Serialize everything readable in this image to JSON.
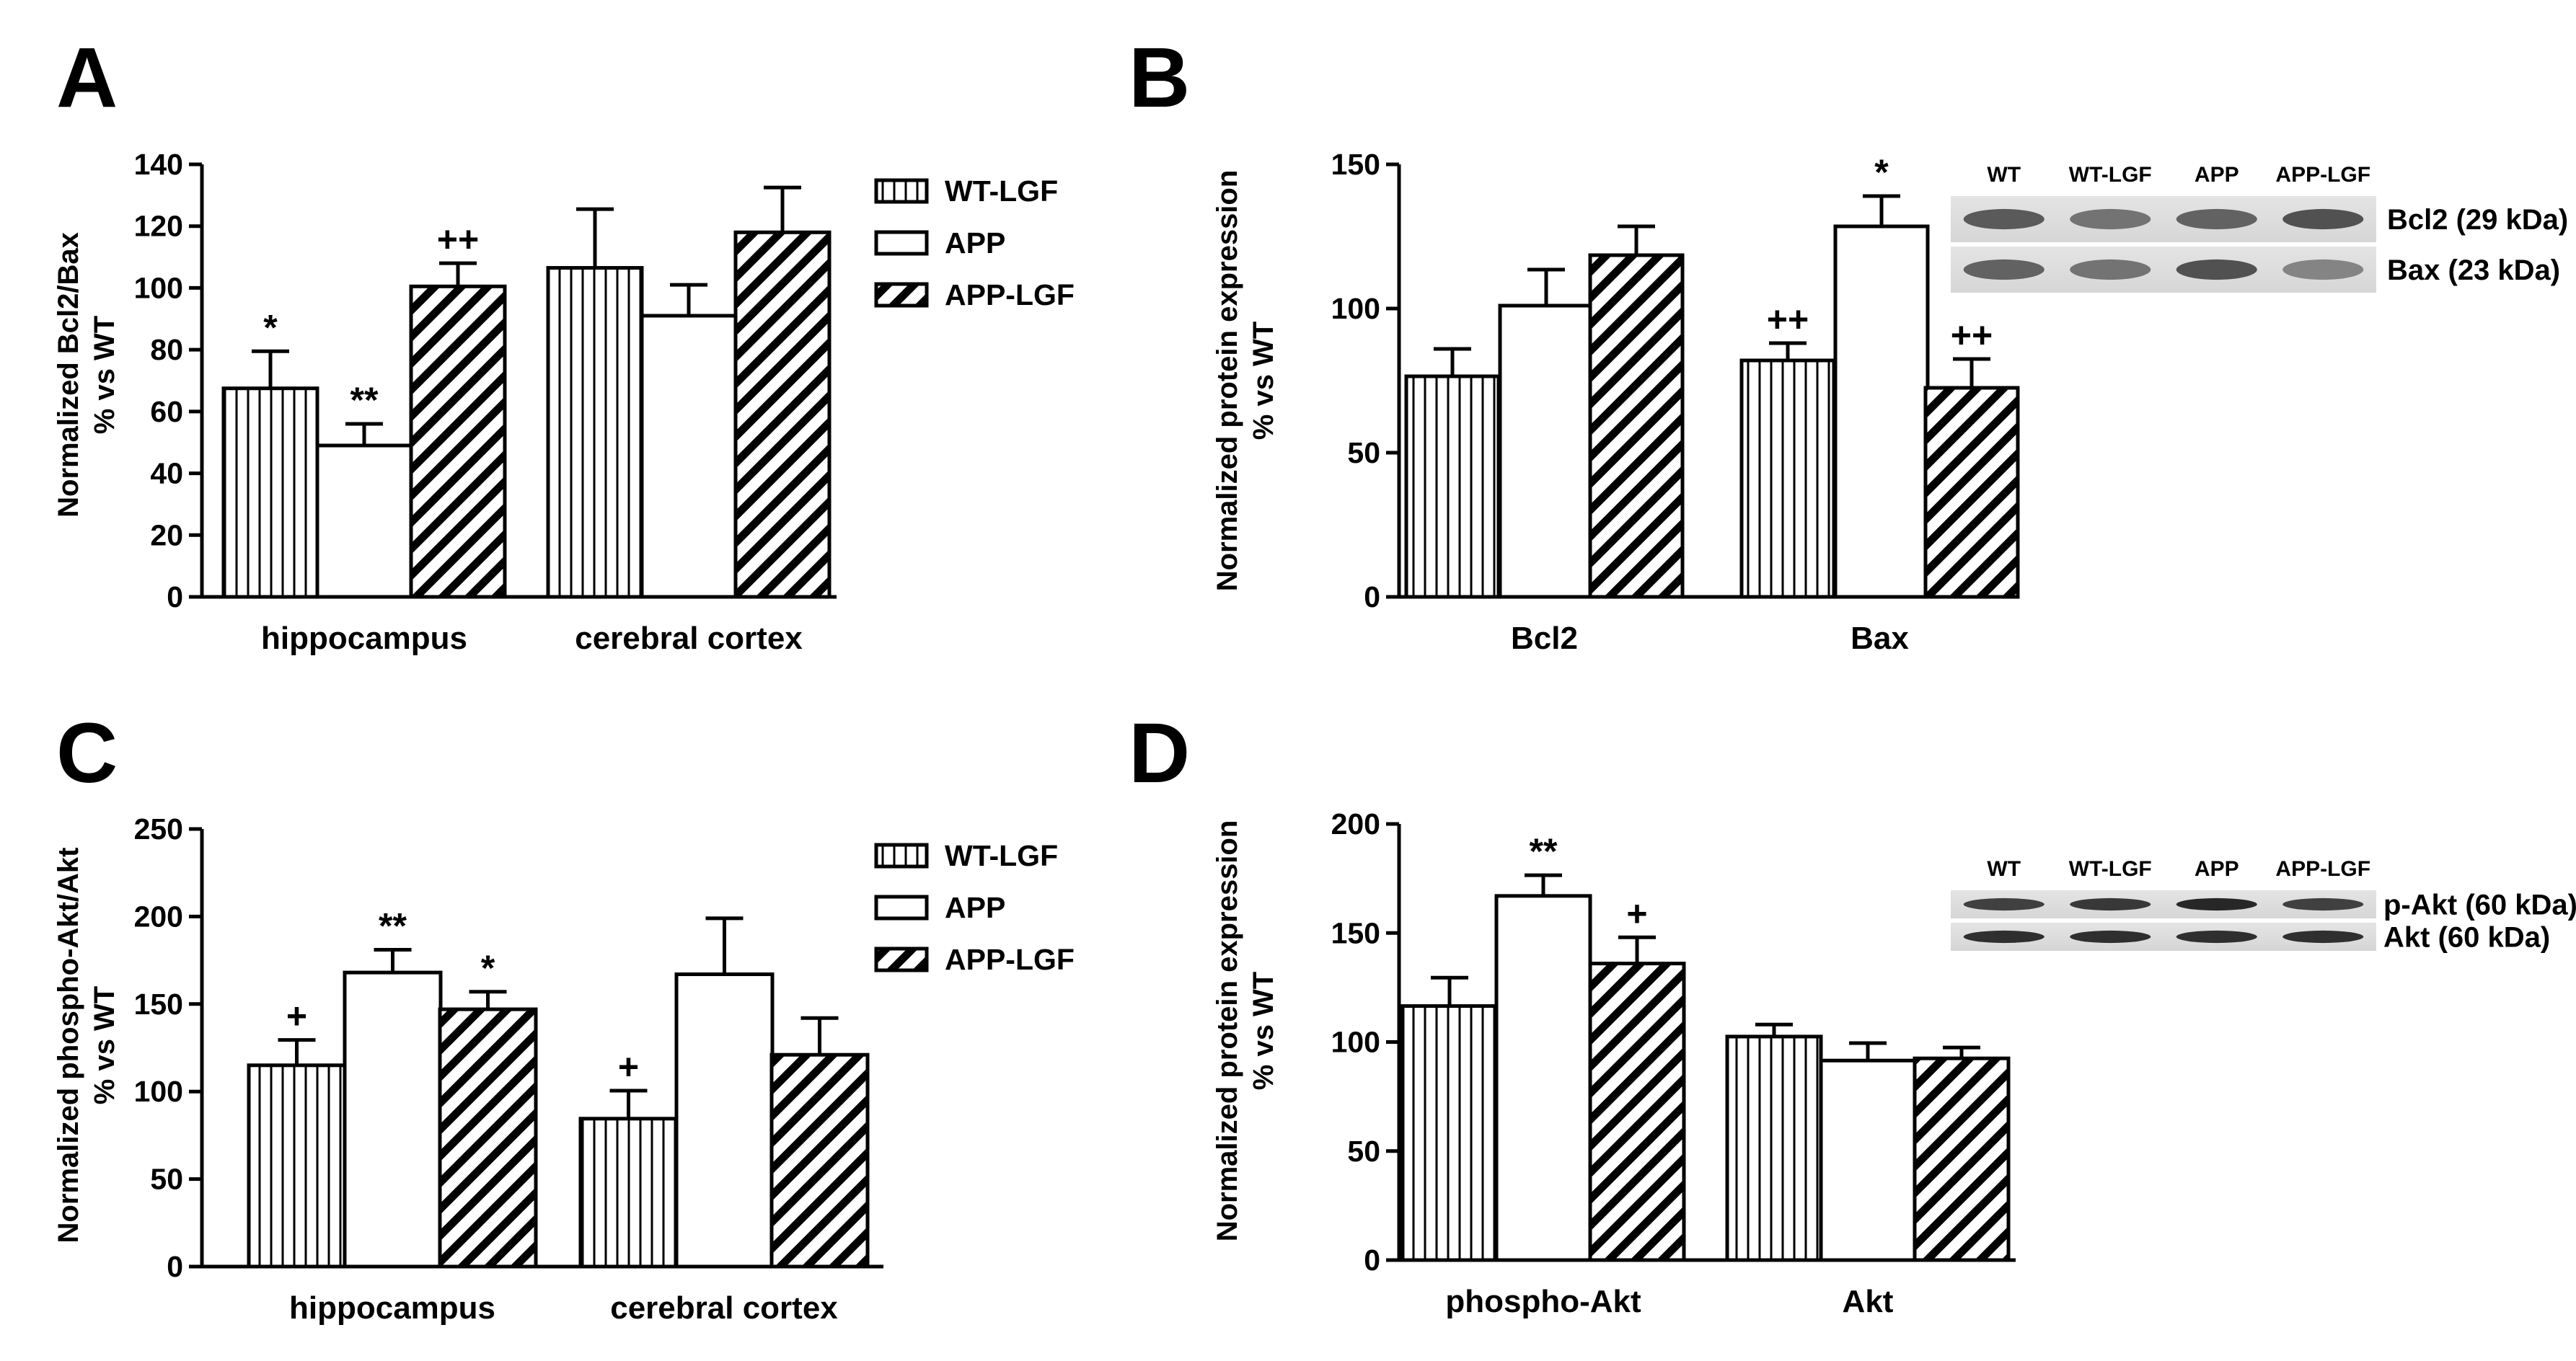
{
  "figure": {
    "description_hidden": ""
  },
  "legend_series": [
    "WT-LGF",
    "APP",
    "APP-LGF"
  ],
  "chart_data": [
    {
      "panel": "A",
      "type": "bar",
      "ylabel_line1": "Normalized Bcl2/Bax",
      "ylabel_line2": "% vs WT",
      "ylim": [
        0,
        140
      ],
      "yticks": [
        0,
        20,
        40,
        60,
        80,
        100,
        120,
        140
      ],
      "categories": [
        "hippocampus",
        "cerebral cortex"
      ],
      "series": [
        {
          "name": "WT-LGF",
          "pattern": "vertical",
          "values": [
            67.5,
            106.5
          ],
          "errors": [
            12,
            19
          ],
          "annotations": [
            "*",
            ""
          ]
        },
        {
          "name": "APP",
          "pattern": "none",
          "values": [
            49,
            91
          ],
          "errors": [
            7,
            10
          ],
          "annotations": [
            "**",
            ""
          ]
        },
        {
          "name": "APP-LGF",
          "pattern": "diagonal",
          "values": [
            100.5,
            118
          ],
          "errors": [
            7.5,
            14.5
          ],
          "annotations": [
            "++",
            ""
          ]
        }
      ],
      "legend": "right",
      "blot": null
    },
    {
      "panel": "B",
      "type": "bar",
      "ylabel_line1": "Normalized protein expression",
      "ylabel_line2": "% vs WT",
      "ylim": [
        0,
        150
      ],
      "yticks": [
        0,
        50,
        100,
        150
      ],
      "categories": [
        "Bcl2",
        "Bax"
      ],
      "series": [
        {
          "name": "WT-LGF",
          "pattern": "vertical",
          "values": [
            76.5,
            82
          ],
          "errors": [
            9.5,
            6
          ],
          "annotations": [
            "",
            "++"
          ]
        },
        {
          "name": "APP",
          "pattern": "none",
          "values": [
            101,
            128.5
          ],
          "errors": [
            12.5,
            10.5
          ],
          "annotations": [
            "",
            "*"
          ]
        },
        {
          "name": "APP-LGF",
          "pattern": "diagonal",
          "values": [
            118.5,
            72.5
          ],
          "errors": [
            10,
            10
          ],
          "annotations": [
            "",
            "++"
          ]
        }
      ],
      "legend": null,
      "blot": {
        "lanes": [
          "WT",
          "WT-LGF",
          "APP",
          "APP-LGF"
        ],
        "rows": [
          {
            "label": "Bcl2 (29 kDa)",
            "intensity": [
              0.65,
              0.5,
              0.6,
              0.7
            ]
          },
          {
            "label": "Bax (23 kDa)",
            "intensity": [
              0.6,
              0.5,
              0.7,
              0.4
            ]
          }
        ]
      }
    },
    {
      "panel": "C",
      "type": "bar",
      "ylabel_line1": "Normalized phospho-Akt/Akt",
      "ylabel_line2": "% vs WT",
      "ylim": [
        0,
        250
      ],
      "yticks": [
        0,
        50,
        100,
        150,
        200,
        250
      ],
      "categories": [
        "hippocampus",
        "cerebral cortex"
      ],
      "series": [
        {
          "name": "WT-LGF",
          "pattern": "vertical",
          "values": [
            115,
            84.5
          ],
          "errors": [
            14.5,
            16
          ],
          "annotations": [
            "+",
            "+"
          ]
        },
        {
          "name": "APP",
          "pattern": "none",
          "values": [
            168,
            167
          ],
          "errors": [
            13,
            32
          ],
          "annotations": [
            "**",
            ""
          ]
        },
        {
          "name": "APP-LGF",
          "pattern": "diagonal",
          "values": [
            147,
            121
          ],
          "errors": [
            10,
            21
          ],
          "annotations": [
            "*",
            ""
          ]
        }
      ],
      "legend": "right",
      "blot": null
    },
    {
      "panel": "D",
      "type": "bar",
      "ylabel_line1": "Normalized protein expression",
      "ylabel_line2": "% vs WT",
      "ylim": [
        0,
        200
      ],
      "yticks": [
        0,
        50,
        100,
        150,
        200
      ],
      "categories": [
        "phospho-Akt",
        "Akt"
      ],
      "series": [
        {
          "name": "WT-LGF",
          "pattern": "vertical",
          "values": [
            116.5,
            102.5
          ],
          "errors": [
            13,
            5.5
          ],
          "annotations": [
            "",
            ""
          ]
        },
        {
          "name": "APP",
          "pattern": "none",
          "values": [
            167,
            91.5
          ],
          "errors": [
            9.5,
            8
          ],
          "annotations": [
            "**",
            ""
          ]
        },
        {
          "name": "APP-LGF",
          "pattern": "diagonal",
          "values": [
            136,
            92.5
          ],
          "errors": [
            12,
            5
          ],
          "annotations": [
            "+",
            ""
          ]
        }
      ],
      "legend": null,
      "blot": {
        "lanes": [
          "WT",
          "WT-LGF",
          "APP",
          "APP-LGF"
        ],
        "rows": [
          {
            "label": "p-Akt (60 kDa)",
            "intensity": [
              0.8,
              0.85,
              0.95,
              0.8
            ]
          },
          {
            "label": "Akt (60 kDa)",
            "intensity": [
              0.9,
              0.9,
              0.9,
              0.9
            ]
          }
        ]
      }
    }
  ]
}
